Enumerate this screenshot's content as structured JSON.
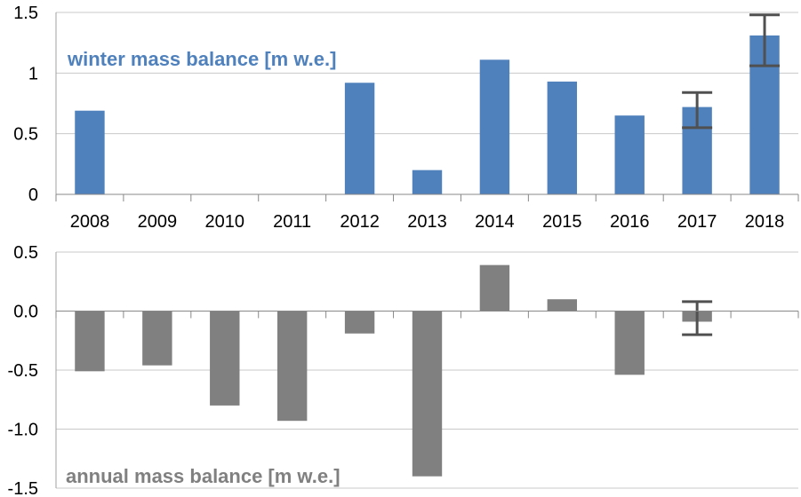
{
  "chart_data": [
    {
      "type": "bar",
      "title": "winter mass balance [m w.e.]",
      "categories": [
        "2008",
        "2009",
        "2010",
        "2011",
        "2012",
        "2013",
        "2014",
        "2015",
        "2016",
        "2017",
        "2018"
      ],
      "values": [
        0.69,
        null,
        null,
        null,
        0.92,
        0.2,
        1.11,
        0.93,
        0.65,
        0.72,
        1.31
      ],
      "error_bars": [
        null,
        null,
        null,
        null,
        null,
        null,
        null,
        null,
        null,
        [
          0.55,
          0.84
        ],
        [
          1.06,
          1.48
        ]
      ],
      "ylim": [
        0,
        1.5
      ],
      "yticks": [
        "0",
        "0.5",
        "1",
        "1.5"
      ],
      "ytick_values": [
        0,
        0.5,
        1,
        1.5
      ],
      "grid": true,
      "color": "#4f81bd",
      "xlabel": "",
      "ylabel": ""
    },
    {
      "type": "bar",
      "title": "annual mass balance [m w.e.]",
      "categories": [
        "2008",
        "2009",
        "2010",
        "2011",
        "2012",
        "2013",
        "2014",
        "2015",
        "2016",
        "2017",
        "2018"
      ],
      "values": [
        -0.51,
        -0.46,
        -0.8,
        -0.93,
        -0.19,
        -1.4,
        0.39,
        0.1,
        -0.54,
        -0.09,
        null
      ],
      "error_bars": [
        null,
        null,
        null,
        null,
        null,
        null,
        null,
        null,
        null,
        [
          -0.2,
          0.08
        ],
        null
      ],
      "ylim": [
        -1.5,
        0.5
      ],
      "yticks": [
        "-1.5",
        "-1.0",
        "-0.5",
        "0.0",
        "0.5"
      ],
      "ytick_values": [
        -1.5,
        -1,
        -0.5,
        0,
        0.5
      ],
      "grid": true,
      "color": "#808080",
      "xlabel": "",
      "ylabel": ""
    }
  ]
}
